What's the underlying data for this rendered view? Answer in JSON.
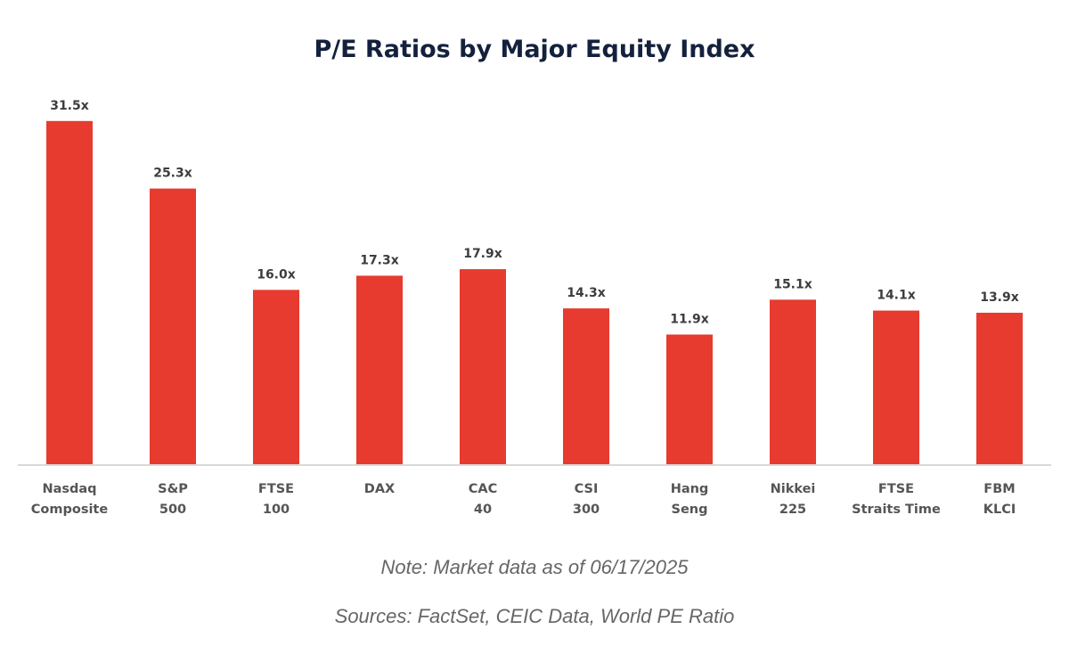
{
  "chart_data": {
    "type": "bar",
    "title": "P/E Ratios by Major Equity Index",
    "categories": [
      [
        "Nasdaq",
        "Composite"
      ],
      [
        "S&P",
        "500"
      ],
      [
        "FTSE",
        "100"
      ],
      [
        "DAX"
      ],
      [
        "CAC",
        "40"
      ],
      [
        "CSI",
        "300"
      ],
      [
        "Hang",
        "Seng"
      ],
      [
        "Nikkei",
        "225"
      ],
      [
        "FTSE",
        "Straits Time"
      ],
      [
        "FBM",
        "KLCI"
      ]
    ],
    "values": [
      31.5,
      25.3,
      16.0,
      17.3,
      17.9,
      14.3,
      11.9,
      15.1,
      14.1,
      13.9
    ],
    "data_labels": [
      "31.5x",
      "25.3x",
      "16.0x",
      "17.3x",
      "17.9x",
      "14.3x",
      "11.9x",
      "15.1x",
      "14.1x",
      "13.9x"
    ],
    "xlabel": "",
    "ylabel": "",
    "ylim": [
      0,
      35
    ],
    "grid": false,
    "bar_color": "#e63b2e"
  },
  "notes": {
    "note": "Note: Market data as of 06/17/2025",
    "sources": "Sources: FactSet, CEIC Data, World PE Ratio"
  }
}
